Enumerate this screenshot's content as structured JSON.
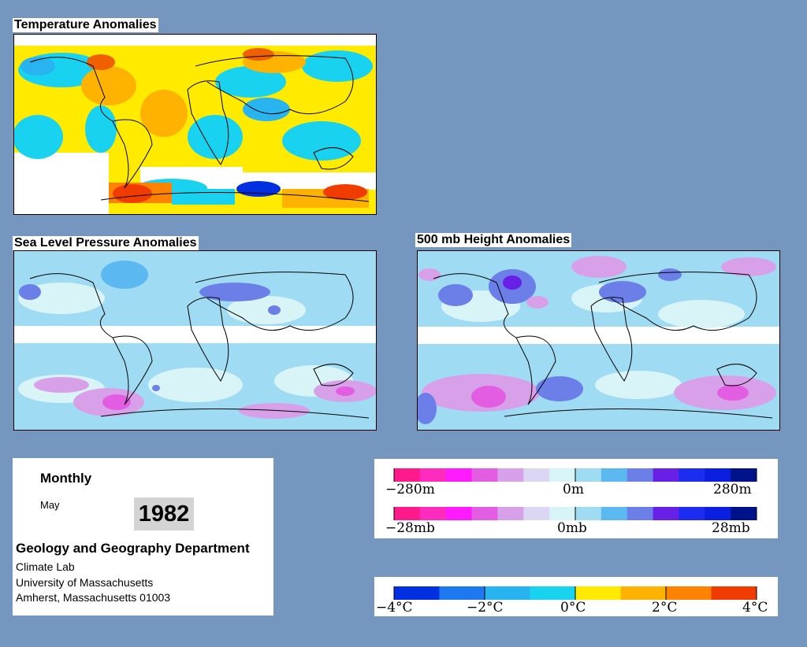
{
  "panels": {
    "temperature": {
      "title": "Temperature Anomalies"
    },
    "slp": {
      "title": "Sea Level Pressure Anomalies"
    },
    "height": {
      "title": "500 mb Height Anomalies"
    }
  },
  "info": {
    "period": "Monthly",
    "month": "May",
    "year": "1982",
    "department": "Geology and Geography Department",
    "lines": [
      "Climate Lab",
      "University of Massachusetts",
      "Amherst, Massachusetts 01003"
    ]
  },
  "legends": {
    "height": {
      "min": "−280m",
      "mid": "0m",
      "max": "280m"
    },
    "pressure": {
      "min": "−28mb",
      "mid": "0mb",
      "max": "28mb"
    },
    "temperature": {
      "t0": "−4°C",
      "t1": "−2°C",
      "t2": "0°C",
      "t3": "2°C",
      "t4": "4°C"
    }
  },
  "colors": {
    "background": "#7596be",
    "temp_scale": [
      "#0030e0",
      "#1e78f0",
      "#28b4f0",
      "#19d2f0",
      "#ffea00",
      "#ffb300",
      "#ff8200",
      "#f03c00"
    ],
    "anomaly_scale": [
      "#ff1a8c",
      "#ff2bbf",
      "#ff1aff",
      "#e35de3",
      "#d9a0ea",
      "#dcd6f5",
      "#d9f4f7",
      "#9fdcf3",
      "#5cb8f0",
      "#6c7fe8",
      "#6820e6",
      "#1c2cf0",
      "#0b1fe0",
      "#00128a"
    ]
  }
}
